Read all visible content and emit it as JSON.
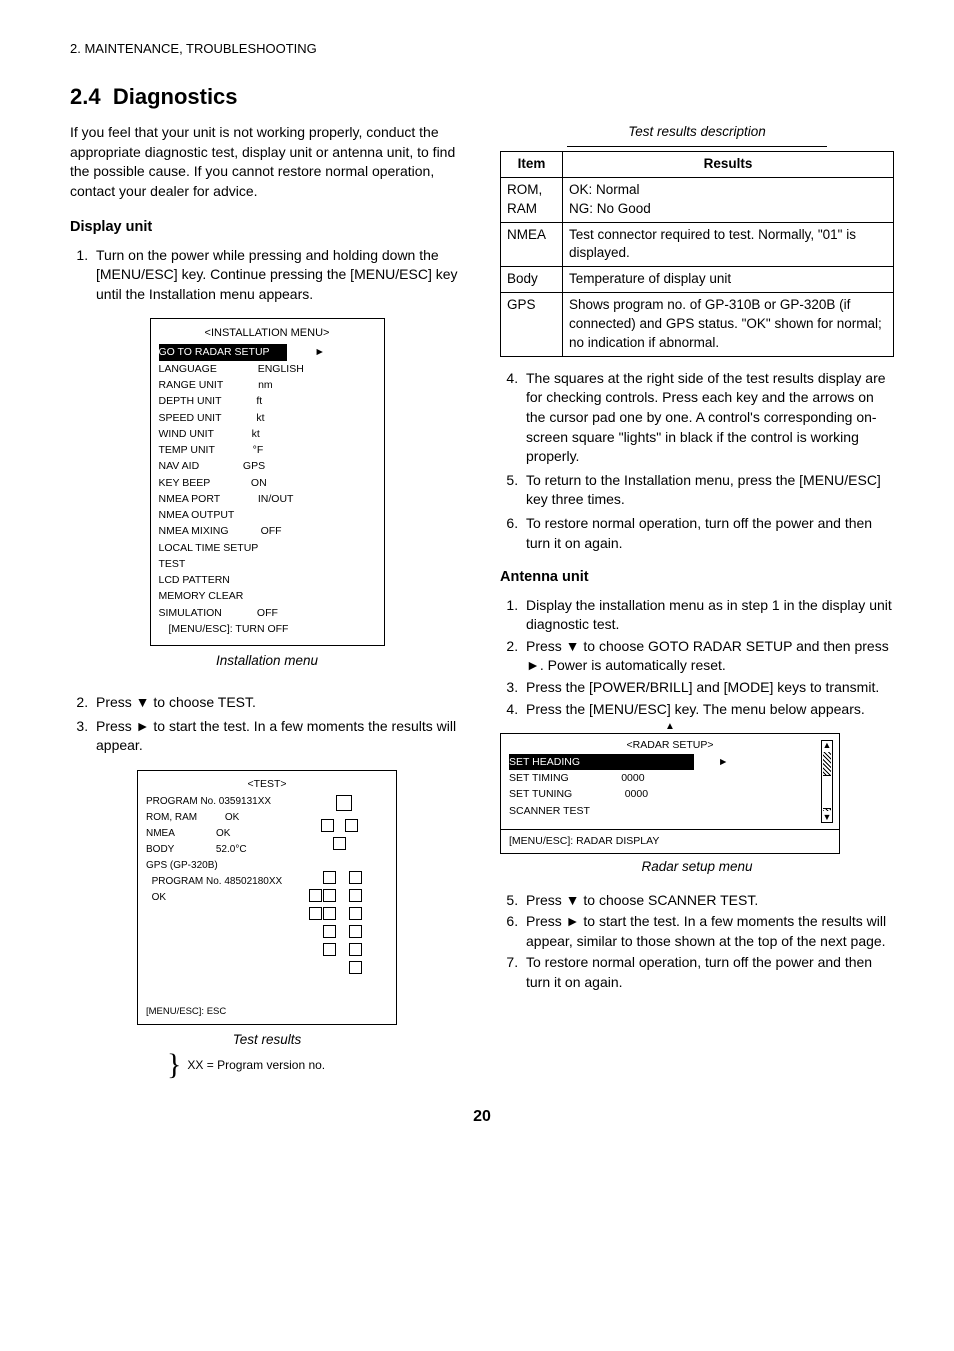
{
  "header": "2. MAINTENANCE, TROUBLESHOOTING",
  "section": {
    "number": "2.4",
    "title": "Diagnostics"
  },
  "intro": "If you feel that your unit is not working properly, conduct the appropriate diagnostic test, display unit or antenna unit, to find the possible cause. If you cannot restore normal operation, contact your dealer for advice.",
  "left": {
    "subhead": "Display unit",
    "step1": "Turn on the power while pressing and holding down the [MENU/ESC] key. Continue pressing the [MENU/ESC] key until the Installation menu appears.",
    "install_menu": {
      "title": "<INSTALLATION MENU>",
      "rows": [
        {
          "label": "GO TO RADAR SETUP",
          "selected": true,
          "arrow": true
        },
        {
          "label": "LANGUAGE",
          "value": "ENGLISH"
        },
        {
          "label": "RANGE UNIT",
          "value": "nm"
        },
        {
          "label": "DEPTH UNIT",
          "value": "ft"
        },
        {
          "label": "SPEED UNIT",
          "value": "kt"
        },
        {
          "label": "WIND UNIT",
          "value": "kt"
        },
        {
          "label": "TEMP UNIT",
          "value": "°F"
        },
        {
          "label": "NAV AID",
          "value": "GPS"
        },
        {
          "label": "KEY BEEP",
          "value": "ON"
        },
        {
          "label": "NMEA PORT",
          "value": "IN/OUT"
        },
        {
          "label": "NMEA OUTPUT",
          "value": ""
        },
        {
          "label": "NMEA MIXING",
          "value": "OFF"
        },
        {
          "label": "LOCAL TIME SETUP",
          "value": ""
        },
        {
          "label": "TEST",
          "value": ""
        },
        {
          "label": "LCD PATTERN",
          "value": ""
        },
        {
          "label": "MEMORY CLEAR",
          "value": ""
        },
        {
          "label": "SIMULATION",
          "value": "OFF"
        }
      ],
      "footer": "[MENU/ESC]: TURN OFF"
    },
    "install_caption": "Installation menu",
    "step2": "Press ▼ to choose TEST.",
    "step3": "Press ► to start the test. In a few moments the results will appear.",
    "test_fig": {
      "title": "<TEST>",
      "prog": "PROGRAM No. 0359131XX",
      "romram": "ROM, RAM",
      "ok1": "OK",
      "nmea": "NMEA",
      "ok2": "OK",
      "body": "BODY",
      "temp": "52.0°C",
      "gps_title": "GPS (GP-320B)",
      "gps_prog": "PROGRAM No. 48502180XX",
      "gps_ok": "OK",
      "esc": "[MENU/ESC]: ESC"
    },
    "test_caption": "Test results",
    "bracket": "XX = Program version no.",
    "table_caption": "Test results description"
  },
  "right": {
    "table": {
      "headers": [
        "Item",
        "Results"
      ],
      "rows": [
        [
          "ROM, RAM",
          "OK: Normal\nNG: No Good"
        ],
        [
          "NMEA",
          "Test connector required to test. Normally, \"01\" is displayed."
        ],
        [
          "Body",
          "Temperature of display unit"
        ],
        [
          "GPS",
          "Shows program no. of GP-310B or GP-320B (if connected) and GPS status. \"OK\" shown for normal; no indication if abnormal."
        ]
      ]
    },
    "step4": "The squares at the right side of the test results display are for checking controls. Press each key and the arrows on the cursor pad one by one. A control's corresponding on-screen square \"lights\" in black if the control is working properly.",
    "step5": "To return to the Installation menu, press the [MENU/ESC] key three times.",
    "step6": "To restore normal operation, turn off the power and then turn it on again.",
    "antenna_head": "Antenna unit",
    "a1": "Display the installation menu as in step 1 in the display unit diagnostic test.",
    "a2": "Press ▼ to choose GOTO RADAR SETUP and then press ►. Power is automatically reset.",
    "a3": "Press the [POWER/BRILL] and [MODE] keys to transmit.",
    "a4": "Press the [MENU/ESC] key. The menu below appears.",
    "radar_menu": {
      "title": "<RADAR SETUP>",
      "rows": [
        {
          "label": "SET HEADING",
          "value": "",
          "arrow": true,
          "selected": true
        },
        {
          "label": "SET TIMING",
          "value": "0000"
        },
        {
          "label": "SET TUNING",
          "value": "0000"
        },
        {
          "label": "SCANNER TEST",
          "value": ""
        }
      ],
      "footer": "[MENU/ESC]: RADAR DISPLAY"
    },
    "radar_caption": "Radar setup menu",
    "a5": "Press ▼ to choose SCANNER TEST.",
    "a6": "Press ► to start the test. In a few moments the results will appear, similar to those shown at the top of the next page.",
    "a7": "To restore normal operation, turn off the power and then turn it on again."
  },
  "page": "20"
}
